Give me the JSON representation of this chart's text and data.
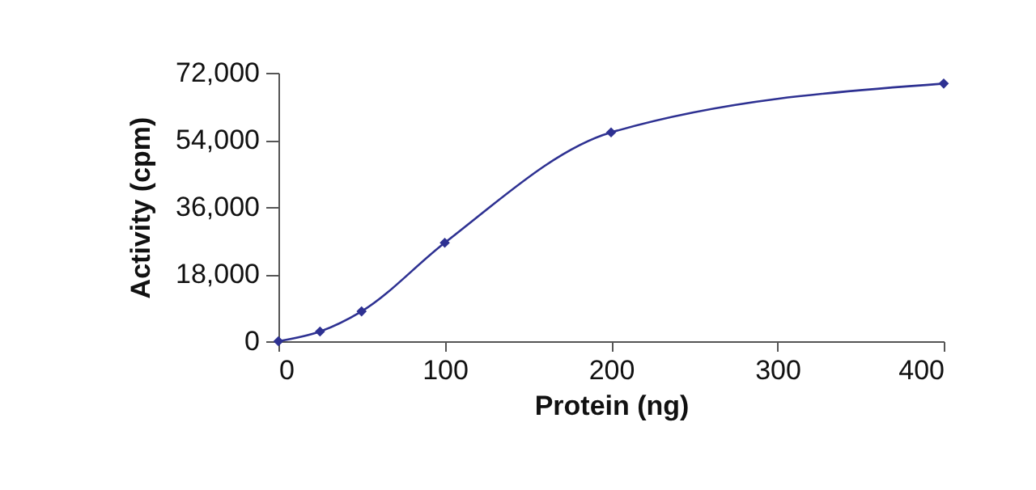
{
  "chart_data": {
    "type": "line",
    "xlabel": "Protein (ng)",
    "ylabel": "Activity (cpm)",
    "x": [
      0,
      25,
      50,
      100,
      200,
      400
    ],
    "series": [
      {
        "color": "#2e3192",
        "values": [
          0,
          2600,
          8000,
          26400,
          56000,
          69100
        ]
      }
    ],
    "xlim": [
      0,
      400
    ],
    "xticks": [
      0,
      100,
      200,
      300,
      400
    ],
    "ylim": [
      0,
      72000
    ],
    "yticks": [
      {
        "value": 0,
        "label": "0"
      },
      {
        "value": 18000,
        "label": "18,000"
      },
      {
        "value": 36000,
        "label": "36,000"
      },
      {
        "value": 54000,
        "label": "54,000"
      },
      {
        "value": 72000,
        "label": "72,000"
      }
    ],
    "marker": "diamond",
    "grid": false
  }
}
